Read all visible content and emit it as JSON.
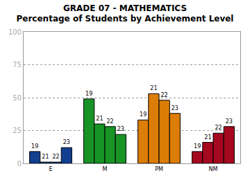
{
  "chart_data": {
    "type": "bar",
    "title": "GRADE 07 - MATHEMATICS",
    "subtitle": "Percentage of Students by Achievement Level",
    "categories": [
      "E",
      "M",
      "PM",
      "NM"
    ],
    "series": [
      {
        "name": "19",
        "colors": [
          "#123f8f",
          "#179425",
          "#dc7d06",
          "#a5081f"
        ],
        "values": [
          9,
          49,
          33,
          9
        ]
      },
      {
        "name": "21",
        "colors": [
          "#123f8f",
          "#179425",
          "#dc7d06",
          "#a5081f"
        ],
        "values": [
          1,
          30,
          53,
          16
        ]
      },
      {
        "name": "22",
        "colors": [
          "#123f8f",
          "#179425",
          "#dc7d06",
          "#a5081f"
        ],
        "values": [
          1,
          28,
          48,
          23
        ]
      },
      {
        "name": "23",
        "colors": [
          "#123f8f",
          "#179425",
          "#dc7d06",
          "#a5081f"
        ],
        "values": [
          12,
          22,
          38,
          28
        ]
      }
    ],
    "ylim": [
      0,
      100
    ],
    "yticks": [
      0,
      25,
      50,
      75,
      100
    ],
    "grid": true
  }
}
